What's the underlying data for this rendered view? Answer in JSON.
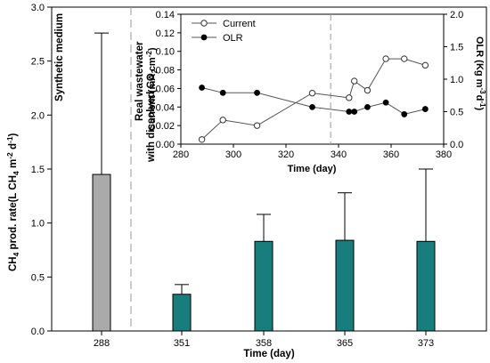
{
  "chart_data": [
    {
      "type": "bar",
      "xlabel": "Time (day)",
      "ylabel": "CH4 prod. rate(L CH4 m-2 d-1)",
      "ylabel_parts": {
        "a": "CH",
        "b": "4",
        "c": " prod. rate(L CH",
        "d": "4",
        "e": " m",
        "f": "-2",
        "g": " d",
        "h": "-1",
        "i": ")"
      },
      "ylim": [
        0,
        3.0
      ],
      "yticks": [
        "0.0",
        "0.5",
        "1.0",
        "1.5",
        "2.0",
        "2.5",
        "3.0"
      ],
      "categories": [
        "288",
        "351",
        "358",
        "365",
        "373"
      ],
      "values": [
        1.45,
        0.34,
        0.83,
        0.84,
        0.83
      ],
      "error_upper": [
        1.31,
        0.09,
        0.25,
        0.44,
        0.67
      ],
      "bar_colors": [
        "#aaaaaa",
        "#177e7d",
        "#177e7d",
        "#177e7d",
        "#177e7d"
      ],
      "annotations": {
        "synthetic": "Synthetic medium",
        "real_line1": "Real wastewater",
        "real_line2": "with dissolved CO",
        "real_sub": "2"
      }
    },
    {
      "type": "line",
      "xlabel": "Time (day)",
      "ylabel_left": "Current (mA cm-2)",
      "ylabel_left_parts": {
        "a": "Current (mA cm",
        "b": "-2",
        "c": ")"
      },
      "ylabel_right": "OLR (Kg m-3 d-1)",
      "ylabel_right_parts": {
        "a": "OLR (Kg m",
        "b": "-3",
        "c": "d",
        "d": "-1",
        "e": ")"
      },
      "xlim": [
        280,
        380
      ],
      "xticks": [
        "280",
        "300",
        "320",
        "340",
        "360",
        "380"
      ],
      "ylim_left": [
        0.0,
        0.14
      ],
      "yticks_left": [
        "0.00",
        "0.02",
        "0.04",
        "0.06",
        "0.08",
        "0.10",
        "0.12",
        "0.14"
      ],
      "ylim_right": [
        0.0,
        2.0
      ],
      "yticks_right": [
        "0.0",
        "0.5",
        "1.0",
        "1.5",
        "2.0"
      ],
      "divider_x": 337,
      "series": [
        {
          "name": "Current",
          "axis": "left",
          "marker": "open-circle",
          "x": [
            288,
            296,
            309,
            330,
            344,
            346,
            351,
            358,
            365,
            373
          ],
          "y": [
            0.005,
            0.026,
            0.02,
            0.055,
            0.05,
            0.068,
            0.058,
            0.092,
            0.092,
            0.085
          ]
        },
        {
          "name": "OLR",
          "axis": "right",
          "marker": "filled-circle",
          "x": [
            288,
            296,
            309,
            330,
            344,
            346,
            351,
            358,
            365,
            373
          ],
          "y": [
            0.87,
            0.79,
            0.79,
            0.57,
            0.5,
            0.5,
            0.57,
            0.64,
            0.46,
            0.54
          ]
        }
      ],
      "legend_position": "top-left"
    }
  ]
}
